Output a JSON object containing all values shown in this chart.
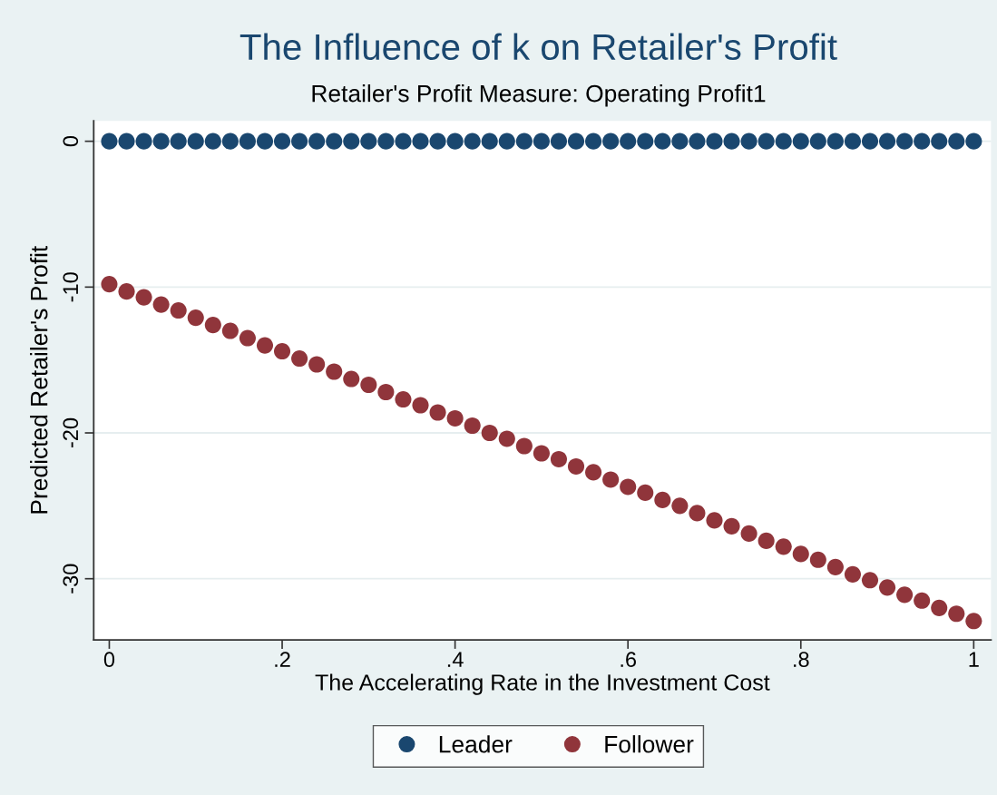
{
  "chart_data": {
    "type": "scatter",
    "title": "The Influence of k on Retailer's Profit",
    "subtitle": "Retailer's Profit Measure: Operating Profit1",
    "xlabel": "The Accelerating Rate in the Investment Cost",
    "ylabel": "Predicted Retailer's Profit",
    "x": [
      0,
      0.02,
      0.04,
      0.06,
      0.08,
      0.1,
      0.12,
      0.14,
      0.16,
      0.18,
      0.2,
      0.22,
      0.24,
      0.26,
      0.28,
      0.3,
      0.32,
      0.34,
      0.36,
      0.38,
      0.4,
      0.42,
      0.44,
      0.46,
      0.48,
      0.5,
      0.52,
      0.54,
      0.56,
      0.58,
      0.6,
      0.62,
      0.64,
      0.66,
      0.68,
      0.7,
      0.72,
      0.74,
      0.76,
      0.78,
      0.8,
      0.82,
      0.84,
      0.86,
      0.88,
      0.9,
      0.92,
      0.94,
      0.96,
      0.98,
      1
    ],
    "series": [
      {
        "name": "Leader",
        "color": "#1a476f",
        "values": [
          0,
          0,
          0,
          0,
          0,
          0,
          0,
          0,
          0,
          0,
          0,
          0,
          0,
          0,
          0,
          0,
          0,
          0,
          0,
          0,
          0,
          0,
          0,
          0,
          0,
          0,
          0,
          0,
          0,
          0,
          0,
          0,
          0,
          0,
          0,
          0,
          0,
          0,
          0,
          0,
          0,
          0,
          0,
          0,
          0,
          0,
          0,
          0,
          0,
          0,
          0
        ]
      },
      {
        "name": "Follower",
        "color": "#90353b",
        "values": [
          -9.8,
          -10.3,
          -10.7,
          -11.2,
          -11.6,
          -12.1,
          -12.6,
          -13.0,
          -13.5,
          -14.0,
          -14.4,
          -14.9,
          -15.3,
          -15.8,
          -16.3,
          -16.7,
          -17.2,
          -17.7,
          -18.1,
          -18.6,
          -19.0,
          -19.5,
          -20.0,
          -20.4,
          -20.9,
          -21.4,
          -21.8,
          -22.3,
          -22.7,
          -23.2,
          -23.7,
          -24.1,
          -24.6,
          -25.0,
          -25.5,
          -26.0,
          -26.4,
          -26.9,
          -27.4,
          -27.8,
          -28.3,
          -28.7,
          -29.2,
          -29.7,
          -30.1,
          -30.6,
          -31.1,
          -31.5,
          -32.0,
          -32.4,
          -32.9
        ]
      }
    ],
    "xlim": [
      -0.018,
      1.02
    ],
    "xticks": [
      {
        "value": 0,
        "label": "0"
      },
      {
        "value": 0.2,
        "label": ".2"
      },
      {
        "value": 0.4,
        "label": ".4"
      },
      {
        "value": 0.6,
        "label": ".6"
      },
      {
        "value": 0.8,
        "label": ".8"
      },
      {
        "value": 1,
        "label": "1"
      }
    ],
    "ylim": [
      -34.2,
      1.4
    ],
    "yticks": [
      -30,
      -20,
      -10,
      0
    ],
    "grid": "y",
    "legend": "bottom",
    "marker": "circle"
  }
}
